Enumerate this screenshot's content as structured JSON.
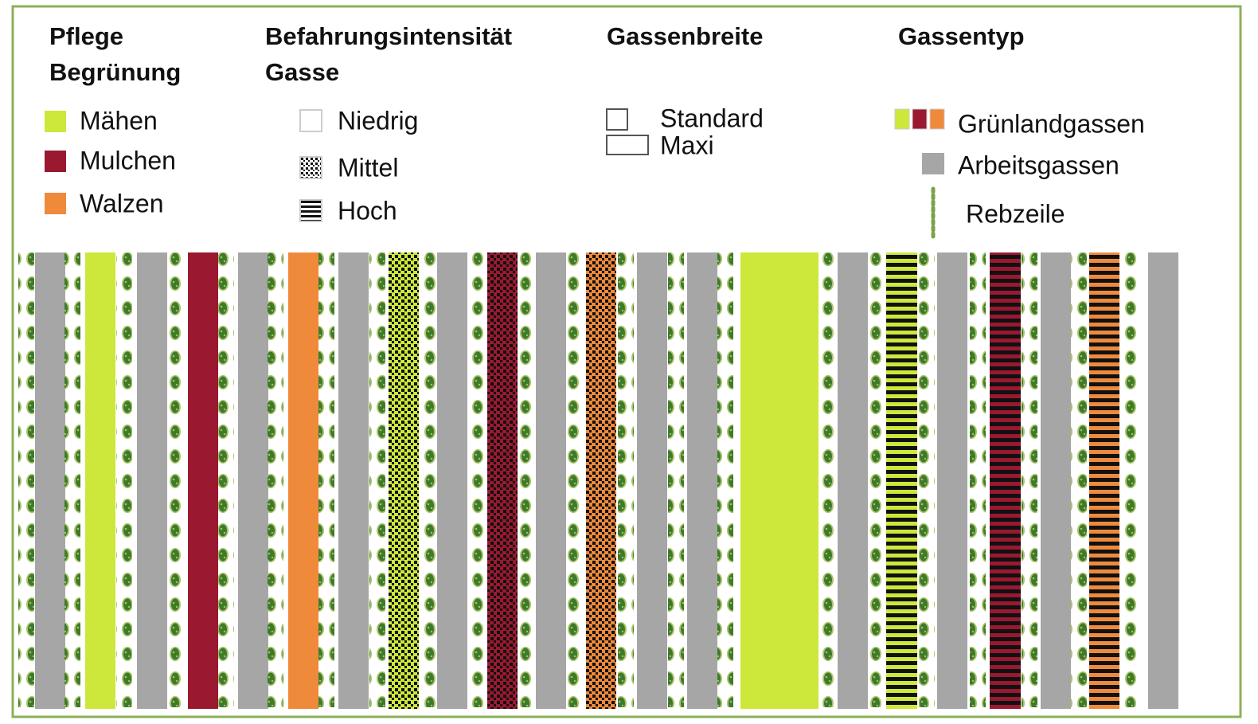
{
  "legend": [
    {
      "heading": [
        "Pflege",
        "Begrünung"
      ],
      "items": [
        "Mähen",
        "Mulchen",
        "Walzen"
      ]
    },
    {
      "heading": [
        "Befahrungsintensität",
        "Gasse"
      ],
      "items": [
        "Niedrig",
        "Mittel",
        "Hoch"
      ]
    },
    {
      "heading": [
        "Gassenbreite"
      ],
      "items": [
        "Standard",
        "Maxi"
      ]
    },
    {
      "heading": [
        "Gassentyp"
      ],
      "items": [
        "Grünlandgassen",
        "Arbeitsgassen",
        "Rebzeile"
      ]
    }
  ]
}
